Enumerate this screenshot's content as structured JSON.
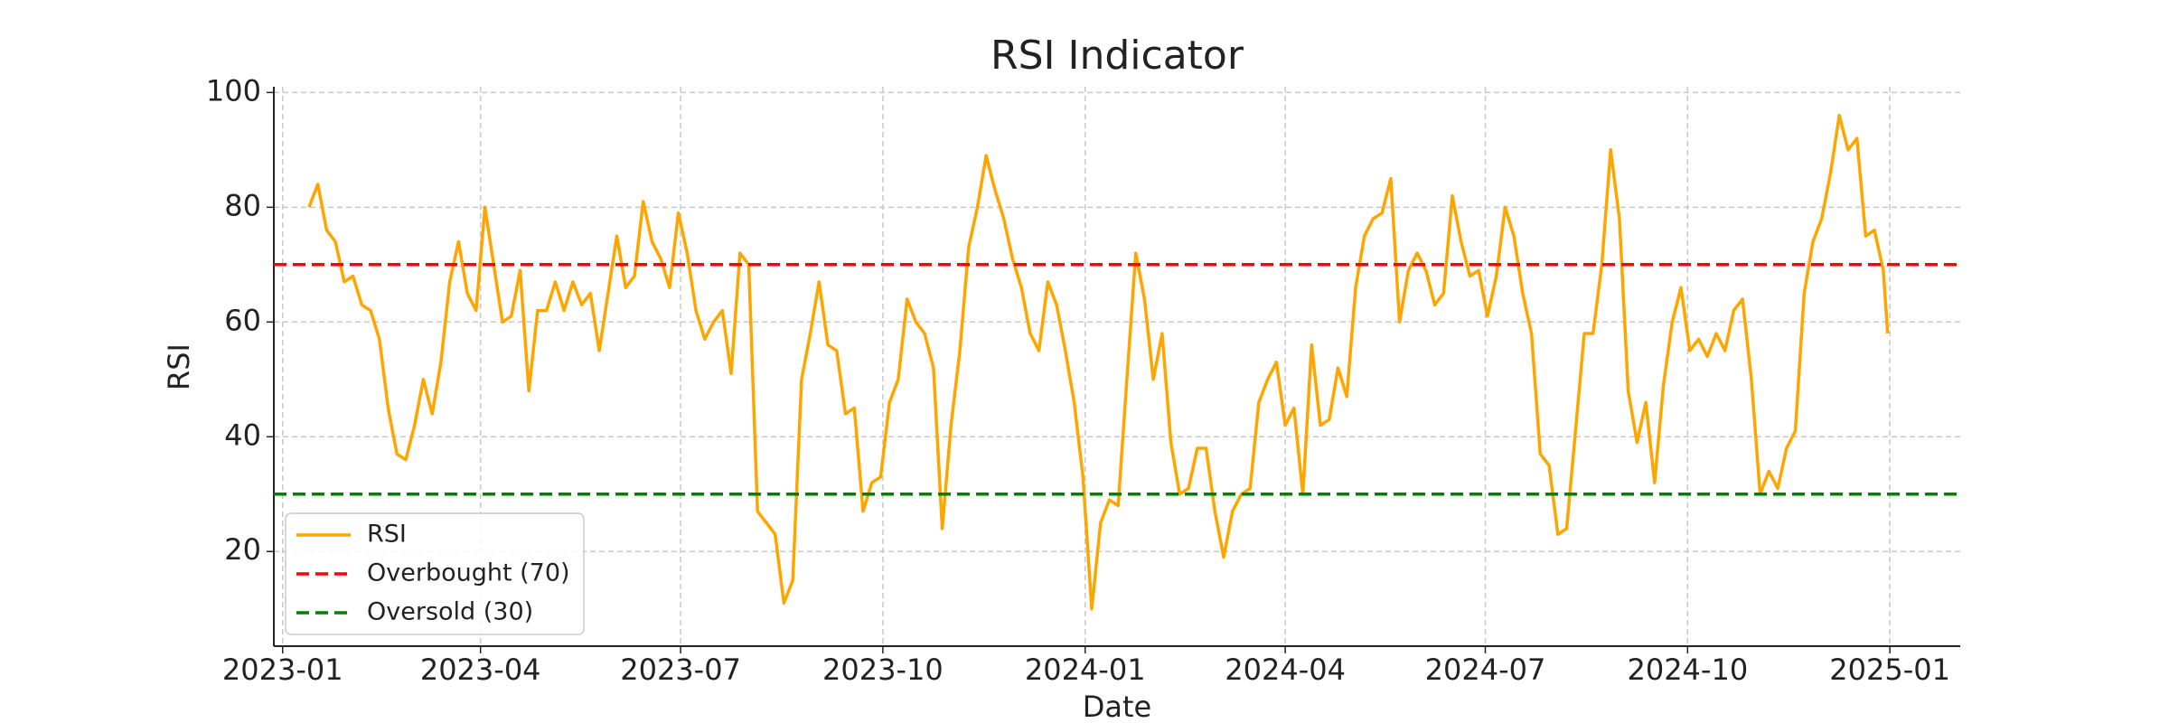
{
  "chart_data": {
    "type": "line",
    "title": "RSI Indicator",
    "x_label": "Date",
    "y_label": "RSI",
    "grid": true,
    "legend_position": "lower left",
    "xlim": [
      -4,
      763
    ],
    "ylim": [
      3.5,
      101
    ],
    "xticks": [
      {
        "value": 0,
        "label": "2023-01"
      },
      {
        "value": 90,
        "label": "2023-04"
      },
      {
        "value": 181,
        "label": "2023-07"
      },
      {
        "value": 273,
        "label": "2023-10"
      },
      {
        "value": 365,
        "label": "2024-01"
      },
      {
        "value": 456,
        "label": "2024-04"
      },
      {
        "value": 547,
        "label": "2024-07"
      },
      {
        "value": 639,
        "label": "2024-10"
      },
      {
        "value": 731,
        "label": "2025-01"
      }
    ],
    "yticks": [
      20,
      40,
      60,
      80,
      100
    ],
    "x": [
      12,
      16,
      20,
      24,
      28,
      32,
      36,
      40,
      44,
      48,
      52,
      56,
      60,
      64,
      68,
      72,
      76,
      80,
      84,
      88,
      92,
      96,
      100,
      104,
      108,
      112,
      116,
      120,
      124,
      128,
      132,
      136,
      140,
      144,
      148,
      152,
      156,
      160,
      164,
      168,
      172,
      176,
      180,
      184,
      188,
      192,
      196,
      200,
      204,
      208,
      212,
      216,
      220,
      224,
      228,
      232,
      236,
      240,
      244,
      248,
      252,
      256,
      260,
      264,
      268,
      272,
      276,
      280,
      284,
      288,
      292,
      296,
      300,
      304,
      308,
      312,
      316,
      320,
      324,
      328,
      332,
      336,
      340,
      344,
      348,
      352,
      356,
      360,
      364,
      368,
      372,
      376,
      380,
      384,
      388,
      392,
      396,
      400,
      404,
      408,
      412,
      416,
      420,
      424,
      428,
      432,
      436,
      440,
      444,
      448,
      452,
      456,
      460,
      464,
      468,
      472,
      476,
      480,
      484,
      488,
      492,
      496,
      500,
      504,
      508,
      512,
      516,
      520,
      524,
      528,
      532,
      536,
      540,
      544,
      548,
      552,
      556,
      560,
      564,
      568,
      572,
      576,
      580,
      584,
      588,
      592,
      596,
      600,
      604,
      608,
      612,
      616,
      620,
      624,
      628,
      632,
      636,
      640,
      644,
      648,
      652,
      656,
      660,
      664,
      668,
      672,
      676,
      680,
      684,
      688,
      692,
      696,
      700,
      704,
      708,
      712,
      716,
      720,
      724,
      728,
      730
    ],
    "series": [
      {
        "name": "RSI",
        "color": "#ffa500",
        "kind": "line",
        "values": [
          80,
          84,
          76,
          74,
          67,
          68,
          63,
          62,
          57,
          45,
          37,
          36,
          42,
          50,
          44,
          53,
          67,
          74,
          65,
          62,
          80,
          70,
          60,
          61,
          69,
          48,
          62,
          62,
          67,
          62,
          67,
          63,
          65,
          55,
          65,
          75,
          66,
          68,
          81,
          74,
          71,
          66,
          79,
          72,
          62,
          57,
          60,
          62,
          51,
          72,
          70,
          27,
          25,
          23,
          11,
          15,
          50,
          58,
          67,
          56,
          55,
          44,
          45,
          27,
          32,
          33,
          46,
          50,
          64,
          60,
          58,
          52,
          24,
          42,
          55,
          73,
          80,
          89,
          83,
          78,
          71,
          66,
          58,
          55,
          67,
          63,
          55,
          46,
          33,
          10,
          25,
          29,
          28,
          50,
          72,
          64,
          50,
          58,
          39,
          30,
          31,
          38,
          38,
          27,
          19,
          27,
          30,
          31,
          46,
          50,
          53,
          42,
          45,
          30,
          56,
          42,
          43,
          52,
          47,
          66,
          75,
          78,
          79,
          85,
          60,
          69,
          72,
          69,
          63,
          65,
          82,
          74,
          68,
          69,
          61,
          68,
          80,
          75,
          65,
          58,
          37,
          35,
          23,
          24,
          41,
          58,
          58,
          70,
          90,
          78,
          48,
          39,
          46,
          32,
          49,
          60,
          66,
          55,
          57,
          54,
          58,
          55,
          62,
          64,
          50,
          30,
          34,
          31,
          38,
          41,
          65,
          74,
          78,
          86,
          96,
          90,
          92,
          75,
          76,
          69,
          58
        ]
      },
      {
        "name": "Overbought (70)",
        "color": "#ff0000",
        "kind": "hline",
        "value": 70
      },
      {
        "name": "Oversold (30)",
        "color": "#008000",
        "kind": "hline",
        "value": 30
      }
    ]
  }
}
